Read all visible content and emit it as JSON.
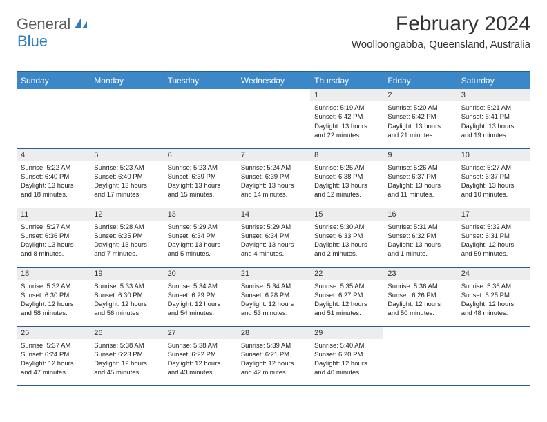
{
  "logo": {
    "text1": "General",
    "text2": "Blue",
    "text1_color": "#5a5a5a",
    "text2_color": "#2f7bbf",
    "icon_color": "#2f7bbf"
  },
  "title": "February 2024",
  "location": "Woolloongabba, Queensland, Australia",
  "colors": {
    "header_bg": "#3b87c8",
    "header_text": "#ffffff",
    "daynum_bg": "#ededed",
    "border": "#2d5d8a",
    "text": "#333333"
  },
  "day_headers": [
    "Sunday",
    "Monday",
    "Tuesday",
    "Wednesday",
    "Thursday",
    "Friday",
    "Saturday"
  ],
  "weeks": [
    [
      {
        "n": "",
        "sr": "",
        "ss": "",
        "dl": ""
      },
      {
        "n": "",
        "sr": "",
        "ss": "",
        "dl": ""
      },
      {
        "n": "",
        "sr": "",
        "ss": "",
        "dl": ""
      },
      {
        "n": "",
        "sr": "",
        "ss": "",
        "dl": ""
      },
      {
        "n": "1",
        "sr": "5:19 AM",
        "ss": "6:42 PM",
        "dl": "13 hours and 22 minutes."
      },
      {
        "n": "2",
        "sr": "5:20 AM",
        "ss": "6:42 PM",
        "dl": "13 hours and 21 minutes."
      },
      {
        "n": "3",
        "sr": "5:21 AM",
        "ss": "6:41 PM",
        "dl": "13 hours and 19 minutes."
      }
    ],
    [
      {
        "n": "4",
        "sr": "5:22 AM",
        "ss": "6:40 PM",
        "dl": "13 hours and 18 minutes."
      },
      {
        "n": "5",
        "sr": "5:23 AM",
        "ss": "6:40 PM",
        "dl": "13 hours and 17 minutes."
      },
      {
        "n": "6",
        "sr": "5:23 AM",
        "ss": "6:39 PM",
        "dl": "13 hours and 15 minutes."
      },
      {
        "n": "7",
        "sr": "5:24 AM",
        "ss": "6:39 PM",
        "dl": "13 hours and 14 minutes."
      },
      {
        "n": "8",
        "sr": "5:25 AM",
        "ss": "6:38 PM",
        "dl": "13 hours and 12 minutes."
      },
      {
        "n": "9",
        "sr": "5:26 AM",
        "ss": "6:37 PM",
        "dl": "13 hours and 11 minutes."
      },
      {
        "n": "10",
        "sr": "5:27 AM",
        "ss": "6:37 PM",
        "dl": "13 hours and 10 minutes."
      }
    ],
    [
      {
        "n": "11",
        "sr": "5:27 AM",
        "ss": "6:36 PM",
        "dl": "13 hours and 8 minutes."
      },
      {
        "n": "12",
        "sr": "5:28 AM",
        "ss": "6:35 PM",
        "dl": "13 hours and 7 minutes."
      },
      {
        "n": "13",
        "sr": "5:29 AM",
        "ss": "6:34 PM",
        "dl": "13 hours and 5 minutes."
      },
      {
        "n": "14",
        "sr": "5:29 AM",
        "ss": "6:34 PM",
        "dl": "13 hours and 4 minutes."
      },
      {
        "n": "15",
        "sr": "5:30 AM",
        "ss": "6:33 PM",
        "dl": "13 hours and 2 minutes."
      },
      {
        "n": "16",
        "sr": "5:31 AM",
        "ss": "6:32 PM",
        "dl": "13 hours and 1 minute."
      },
      {
        "n": "17",
        "sr": "5:32 AM",
        "ss": "6:31 PM",
        "dl": "12 hours and 59 minutes."
      }
    ],
    [
      {
        "n": "18",
        "sr": "5:32 AM",
        "ss": "6:30 PM",
        "dl": "12 hours and 58 minutes."
      },
      {
        "n": "19",
        "sr": "5:33 AM",
        "ss": "6:30 PM",
        "dl": "12 hours and 56 minutes."
      },
      {
        "n": "20",
        "sr": "5:34 AM",
        "ss": "6:29 PM",
        "dl": "12 hours and 54 minutes."
      },
      {
        "n": "21",
        "sr": "5:34 AM",
        "ss": "6:28 PM",
        "dl": "12 hours and 53 minutes."
      },
      {
        "n": "22",
        "sr": "5:35 AM",
        "ss": "6:27 PM",
        "dl": "12 hours and 51 minutes."
      },
      {
        "n": "23",
        "sr": "5:36 AM",
        "ss": "6:26 PM",
        "dl": "12 hours and 50 minutes."
      },
      {
        "n": "24",
        "sr": "5:36 AM",
        "ss": "6:25 PM",
        "dl": "12 hours and 48 minutes."
      }
    ],
    [
      {
        "n": "25",
        "sr": "5:37 AM",
        "ss": "6:24 PM",
        "dl": "12 hours and 47 minutes."
      },
      {
        "n": "26",
        "sr": "5:38 AM",
        "ss": "6:23 PM",
        "dl": "12 hours and 45 minutes."
      },
      {
        "n": "27",
        "sr": "5:38 AM",
        "ss": "6:22 PM",
        "dl": "12 hours and 43 minutes."
      },
      {
        "n": "28",
        "sr": "5:39 AM",
        "ss": "6:21 PM",
        "dl": "12 hours and 42 minutes."
      },
      {
        "n": "29",
        "sr": "5:40 AM",
        "ss": "6:20 PM",
        "dl": "12 hours and 40 minutes."
      },
      {
        "n": "",
        "sr": "",
        "ss": "",
        "dl": ""
      },
      {
        "n": "",
        "sr": "",
        "ss": "",
        "dl": ""
      }
    ]
  ],
  "labels": {
    "sunrise": "Sunrise:",
    "sunset": "Sunset:",
    "daylight": "Daylight:"
  }
}
